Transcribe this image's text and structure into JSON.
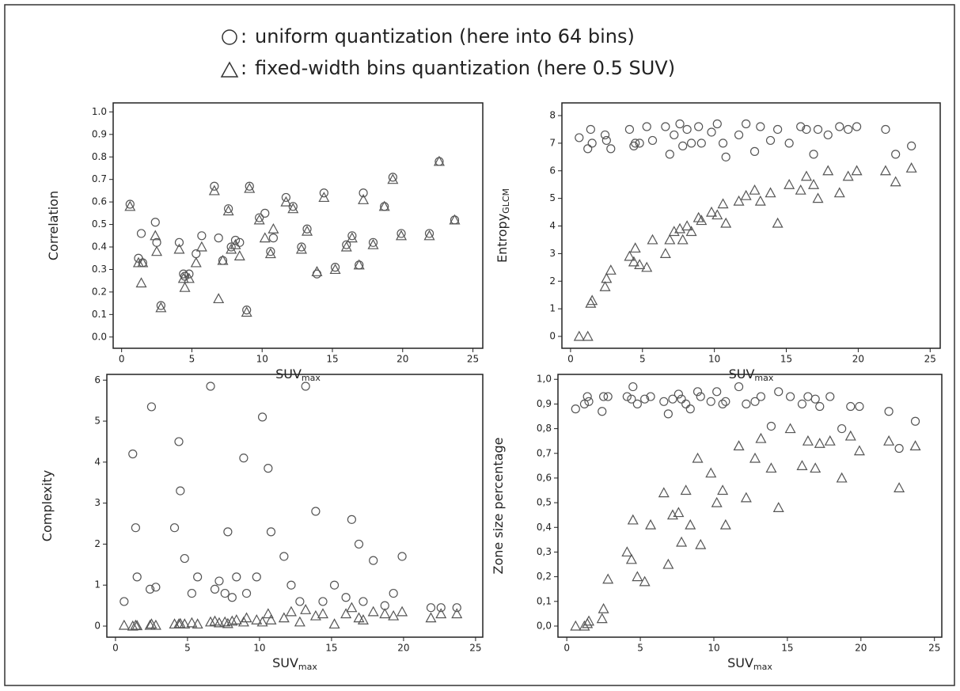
{
  "chart_data": [
    {
      "type": "scatter",
      "y_label": "Correlation",
      "x_label": "SUV",
      "x_label_sub": "max",
      "x": [
        0.6,
        1.2,
        1.4,
        1.5,
        2.4,
        2.5,
        2.8,
        4.1,
        4.4,
        4.5,
        4.8,
        5.3,
        5.7,
        6.6,
        6.9,
        7.2,
        7.6,
        7.8,
        8.1,
        8.4,
        8.9,
        9.1,
        9.8,
        10.2,
        10.6,
        10.8,
        11.7,
        12.2,
        12.8,
        13.2,
        13.9,
        14.4,
        15.2,
        16.0,
        16.4,
        16.9,
        17.2,
        17.9,
        18.7,
        19.3,
        19.9,
        21.9,
        22.6,
        23.7
      ],
      "series": [
        {
          "name": "uniform quantization (here into 64 bins)",
          "marker": "circle",
          "color": "#555555",
          "values": [
            0.59,
            0.35,
            0.46,
            0.33,
            0.51,
            0.42,
            0.14,
            0.42,
            0.28,
            0.27,
            0.28,
            0.37,
            0.45,
            0.67,
            0.44,
            0.34,
            0.57,
            0.4,
            0.43,
            0.42,
            0.12,
            0.67,
            0.53,
            0.55,
            0.38,
            0.44,
            0.62,
            0.58,
            0.4,
            0.48,
            0.28,
            0.64,
            0.31,
            0.41,
            0.45,
            0.32,
            0.64,
            0.42,
            0.58,
            0.71,
            0.46,
            0.46,
            0.78,
            0.52
          ]
        },
        {
          "name": "fixed-width bins quantization (here 0.5 SUV)",
          "marker": "triangle",
          "color": "#555555",
          "values": [
            0.58,
            0.33,
            0.24,
            0.33,
            0.45,
            0.38,
            0.13,
            0.39,
            0.26,
            0.22,
            0.26,
            0.33,
            0.4,
            0.65,
            0.17,
            0.34,
            0.56,
            0.39,
            0.41,
            0.36,
            0.11,
            0.66,
            0.52,
            0.44,
            0.37,
            0.48,
            0.6,
            0.57,
            0.39,
            0.47,
            0.29,
            0.62,
            0.3,
            0.4,
            0.44,
            0.32,
            0.61,
            0.41,
            0.58,
            0.7,
            0.45,
            0.45,
            0.78,
            0.52
          ]
        }
      ],
      "xlim": [
        -0.6,
        25.7
      ],
      "xticks": [
        0,
        5,
        10,
        15,
        20,
        25
      ],
      "ylim": [
        -0.05,
        1.04
      ],
      "yticks": [
        {
          "value": 0,
          "label": "0.0"
        },
        {
          "value": 0.1,
          "label": "0.1"
        },
        {
          "value": 0.2,
          "label": "0.2"
        },
        {
          "value": 0.3,
          "label": "0.3"
        },
        {
          "value": 0.4,
          "label": "0.4"
        },
        {
          "value": 0.5,
          "label": "0.5"
        },
        {
          "value": 0.6,
          "label": "0.6"
        },
        {
          "value": 0.7,
          "label": "0.7"
        },
        {
          "value": 0.8,
          "label": "0.8"
        },
        {
          "value": 0.9,
          "label": "0.9"
        },
        {
          "value": 1,
          "label": "1.0"
        }
      ]
    },
    {
      "type": "scatter",
      "y_label": "Entropy",
      "y_label_sub": "GLCM",
      "x_label": "SUV",
      "x_label_sub": "max",
      "x": [
        0.6,
        1.2,
        1.4,
        1.5,
        2.4,
        2.5,
        2.8,
        4.1,
        4.4,
        4.5,
        4.8,
        5.3,
        5.7,
        6.6,
        6.9,
        7.2,
        7.6,
        7.8,
        8.1,
        8.4,
        8.9,
        9.1,
        9.8,
        10.2,
        10.6,
        10.8,
        11.7,
        12.2,
        12.8,
        13.2,
        13.9,
        14.4,
        15.2,
        16.0,
        16.4,
        16.9,
        17.2,
        17.9,
        18.7,
        19.3,
        19.9,
        21.9,
        22.6,
        23.7
      ],
      "series": [
        {
          "marker": "circle",
          "color": "#555555",
          "values": [
            7.2,
            6.8,
            7.5,
            7.0,
            7.3,
            7.1,
            6.8,
            7.5,
            6.9,
            7.0,
            7.0,
            7.6,
            7.1,
            7.6,
            6.6,
            7.3,
            7.7,
            6.9,
            7.5,
            7.0,
            7.6,
            7.0,
            7.4,
            7.7,
            7.0,
            6.5,
            7.3,
            7.7,
            6.7,
            7.6,
            7.1,
            7.5,
            7.0,
            7.6,
            7.5,
            6.6,
            7.5,
            7.3,
            7.6,
            7.5,
            7.6,
            7.5,
            6.6,
            6.9
          ]
        },
        {
          "marker": "triangle",
          "color": "#555555",
          "values": [
            0,
            0,
            1.2,
            1.3,
            1.8,
            2.1,
            2.4,
            2.9,
            2.7,
            3.2,
            2.6,
            2.5,
            3.5,
            3.0,
            3.5,
            3.8,
            3.9,
            3.5,
            4.0,
            3.8,
            4.3,
            4.2,
            4.5,
            4.4,
            4.8,
            4.1,
            4.9,
            5.1,
            5.3,
            4.9,
            5.2,
            4.1,
            5.5,
            5.3,
            5.8,
            5.5,
            5.0,
            6.0,
            5.2,
            5.8,
            6.0,
            6.0,
            5.6,
            6.1
          ]
        }
      ],
      "xlim": [
        -0.6,
        25.7
      ],
      "xticks": [
        0,
        5,
        10,
        15,
        20,
        25
      ],
      "ylim": [
        -0.43,
        8.46
      ],
      "yticks": [
        0,
        1,
        2,
        3,
        4,
        5,
        6,
        7,
        8
      ]
    },
    {
      "type": "scatter",
      "y_label": "Complexity",
      "x_label": "SUV",
      "x_label_sub": "max",
      "x": [
        0.6,
        1.2,
        1.4,
        1.5,
        2.4,
        2.5,
        2.8,
        4.1,
        4.4,
        4.5,
        4.8,
        5.3,
        5.7,
        6.6,
        6.9,
        7.2,
        7.6,
        7.8,
        8.1,
        8.4,
        8.9,
        9.1,
        9.8,
        10.2,
        10.6,
        10.8,
        11.7,
        12.2,
        12.8,
        13.2,
        13.9,
        14.4,
        15.2,
        16.0,
        16.4,
        16.9,
        17.2,
        17.9,
        18.7,
        19.3,
        19.9,
        21.9,
        22.6,
        23.7
      ],
      "series": [
        {
          "marker": "circle",
          "color": "#555555",
          "values": [
            0.6,
            4.2,
            2.4,
            1.2,
            0.9,
            5.35,
            0.95,
            2.4,
            4.5,
            3.3,
            1.65,
            0.8,
            1.2,
            5.85,
            0.9,
            1.1,
            0.8,
            2.3,
            0.7,
            1.2,
            4.1,
            0.8,
            1.2,
            5.1,
            3.85,
            2.3,
            1.7,
            1.0,
            0.6,
            5.85,
            2.8,
            0.6,
            1.0,
            0.7,
            2.6,
            2.0,
            0.6,
            1.6,
            0.5,
            0.8,
            1.7,
            0.45,
            0.45,
            0.45
          ]
        },
        {
          "marker": "triangle",
          "color": "#555555",
          "values": [
            0.02,
            0,
            0.02,
            0.01,
            0.02,
            0.05,
            0.02,
            0.05,
            0.05,
            0.06,
            0.05,
            0.08,
            0.05,
            0.1,
            0.12,
            0.08,
            0.1,
            0.06,
            0.12,
            0.15,
            0.1,
            0.2,
            0.15,
            0.1,
            0.3,
            0.15,
            0.2,
            0.35,
            0.1,
            0.4,
            0.25,
            0.3,
            0.05,
            0.3,
            0.45,
            0.2,
            0.15,
            0.35,
            0.3,
            0.25,
            0.35,
            0.2,
            0.3,
            0.3
          ]
        }
      ],
      "xlim": [
        -0.6,
        25.5
      ],
      "xticks": [
        0,
        5,
        10,
        15,
        20,
        25
      ],
      "ylim": [
        -0.27,
        6.14
      ],
      "yticks": [
        0,
        1,
        2,
        3,
        4,
        5,
        6
      ]
    },
    {
      "type": "scatter",
      "y_label": "Zone size percentage",
      "x_label": "SUV",
      "x_label_sub": "max",
      "x": [
        0.6,
        1.2,
        1.4,
        1.5,
        2.4,
        2.5,
        2.8,
        4.1,
        4.4,
        4.5,
        4.8,
        5.3,
        5.7,
        6.6,
        6.9,
        7.2,
        7.6,
        7.8,
        8.1,
        8.4,
        8.9,
        9.1,
        9.8,
        10.2,
        10.6,
        10.8,
        11.7,
        12.2,
        12.8,
        13.2,
        13.9,
        14.4,
        15.2,
        16.0,
        16.4,
        16.9,
        17.2,
        17.9,
        18.7,
        19.3,
        19.9,
        21.9,
        22.6,
        23.7
      ],
      "series": [
        {
          "marker": "circle",
          "color": "#555555",
          "values": [
            0.88,
            0.9,
            0.93,
            0.91,
            0.87,
            0.93,
            0.93,
            0.93,
            0.92,
            0.97,
            0.9,
            0.92,
            0.93,
            0.91,
            0.86,
            0.92,
            0.94,
            0.92,
            0.9,
            0.88,
            0.95,
            0.93,
            0.91,
            0.95,
            0.9,
            0.91,
            0.97,
            0.9,
            0.91,
            0.93,
            0.81,
            0.95,
            0.93,
            0.9,
            0.93,
            0.92,
            0.89,
            0.93,
            0.8,
            0.89,
            0.89,
            0.87,
            0.72,
            0.83
          ]
        },
        {
          "marker": "triangle",
          "color": "#555555",
          "values": [
            0,
            0,
            0.01,
            0.02,
            0.03,
            0.07,
            0.19,
            0.3,
            0.27,
            0.43,
            0.2,
            0.18,
            0.41,
            0.54,
            0.25,
            0.45,
            0.46,
            0.34,
            0.55,
            0.41,
            0.68,
            0.33,
            0.62,
            0.5,
            0.55,
            0.41,
            0.73,
            0.52,
            0.68,
            0.76,
            0.64,
            0.48,
            0.8,
            0.65,
            0.75,
            0.64,
            0.74,
            0.75,
            0.6,
            0.77,
            0.71,
            0.75,
            0.56,
            0.73
          ]
        }
      ],
      "xlim": [
        -0.6,
        25.5
      ],
      "xticks": [
        0,
        5,
        10,
        15,
        20,
        25
      ],
      "ylim": [
        -0.045,
        1.02
      ],
      "yticks": [
        {
          "value": 0,
          "label": "0,0"
        },
        {
          "value": 0.1,
          "label": "0,1"
        },
        {
          "value": 0.2,
          "label": "0,2"
        },
        {
          "value": 0.3,
          "label": "0,3"
        },
        {
          "value": 0.4,
          "label": "0,4"
        },
        {
          "value": 0.5,
          "label": "0,5"
        },
        {
          "value": 0.6,
          "label": "0,6"
        },
        {
          "value": 0.7,
          "label": "0,7"
        },
        {
          "value": 0.8,
          "label": "0,8"
        },
        {
          "value": 0.9,
          "label": "0,9"
        },
        {
          "value": 1,
          "label": "1,0"
        }
      ]
    }
  ]
}
